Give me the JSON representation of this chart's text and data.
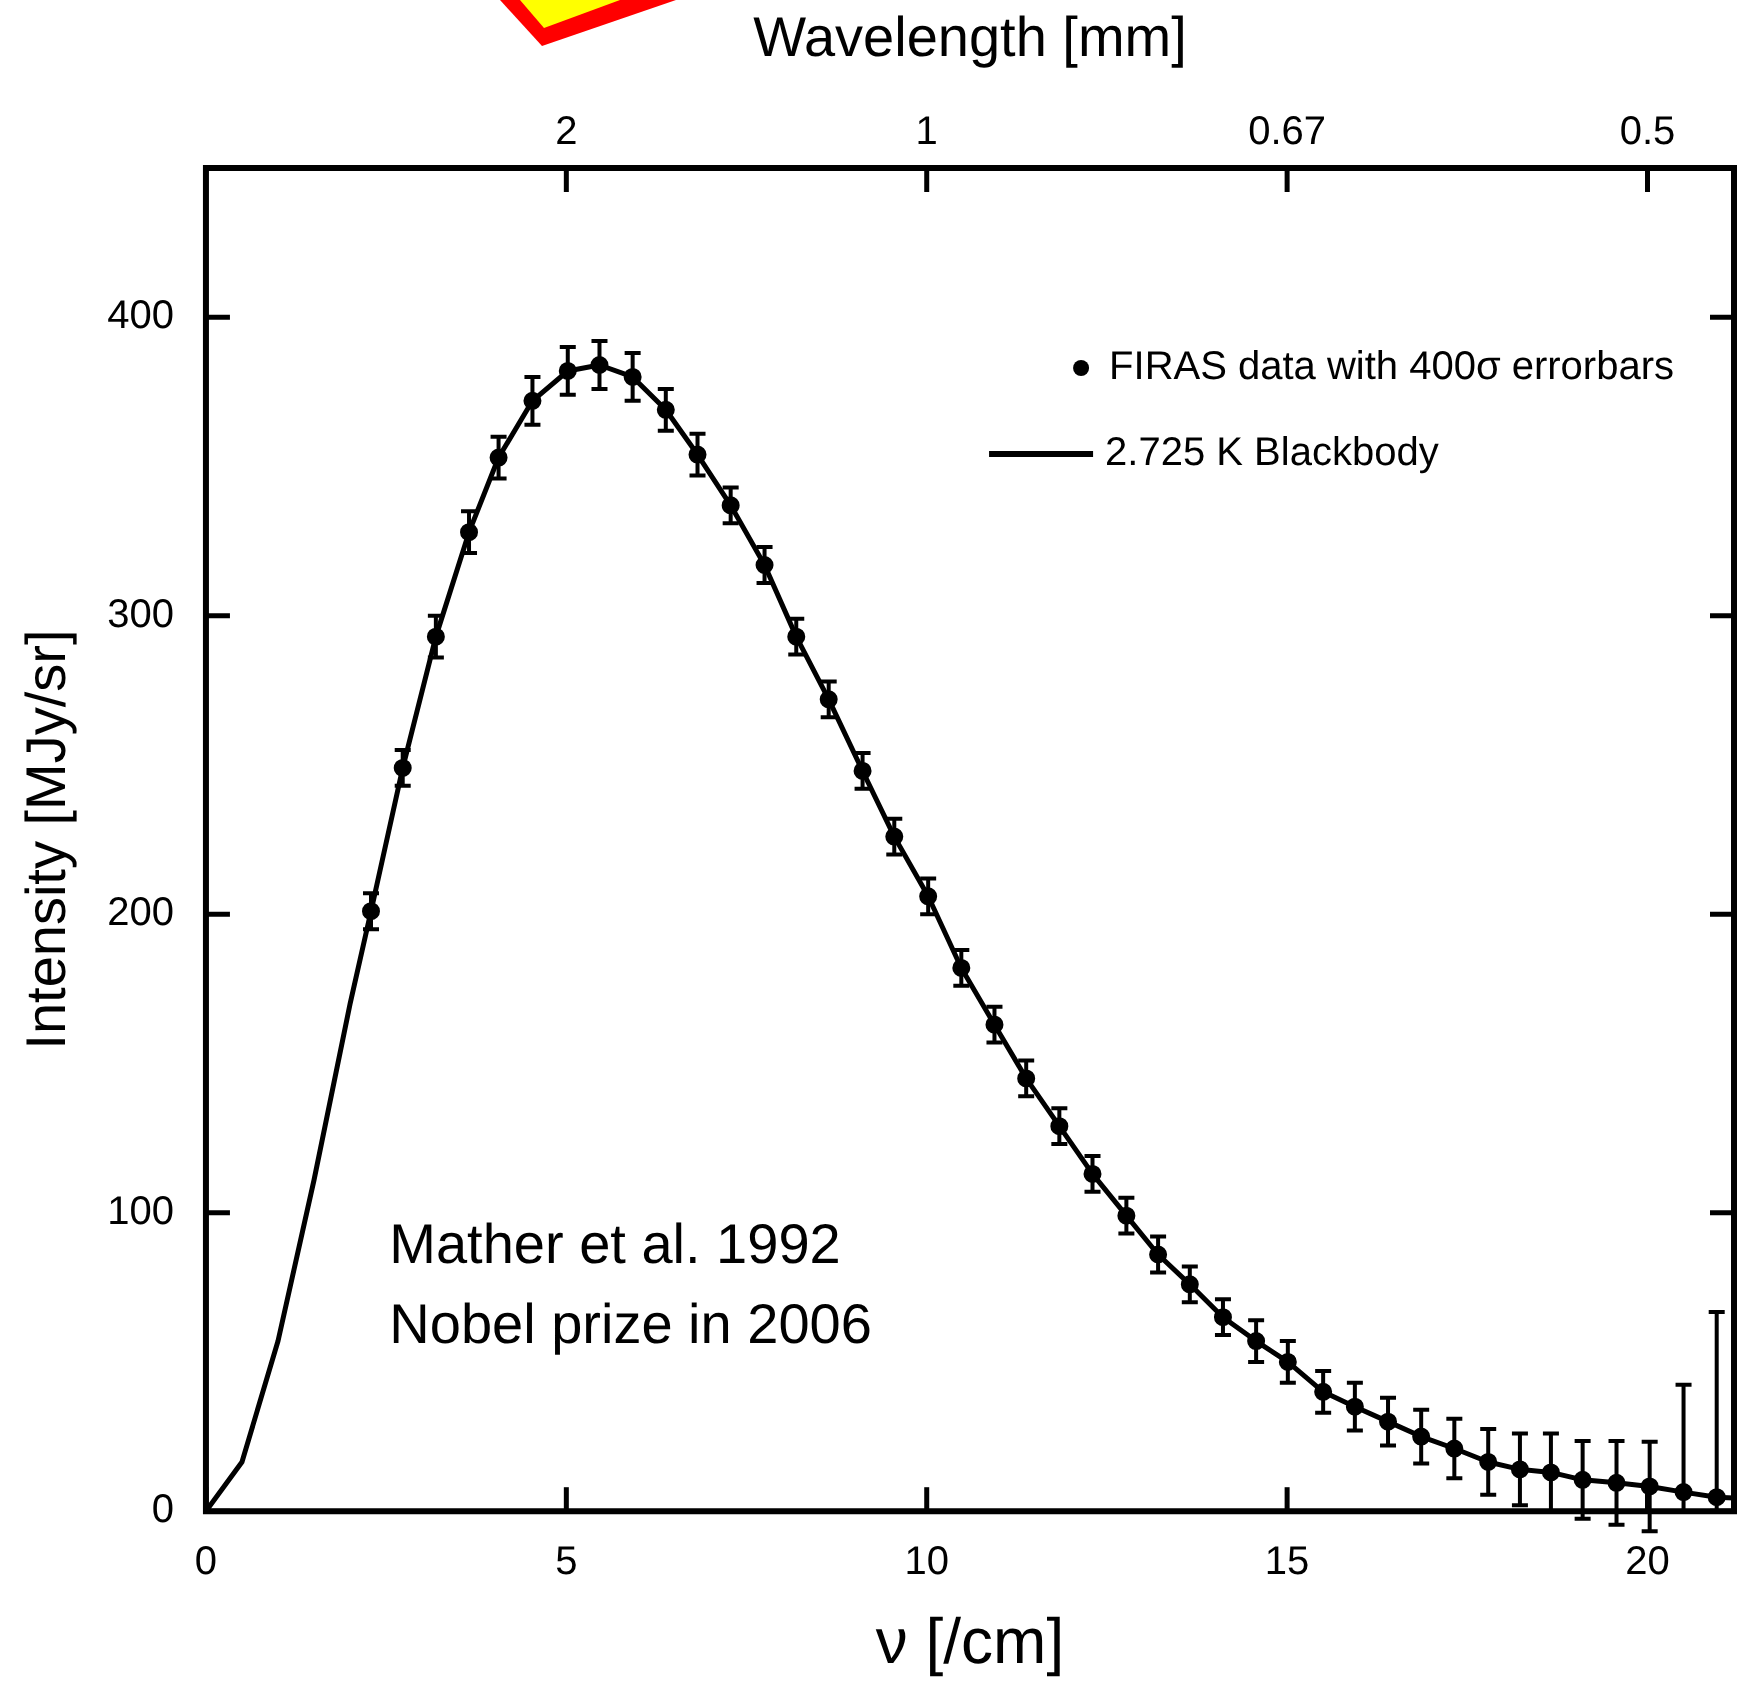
{
  "chart_data": {
    "type": "scatter",
    "xlabel": "ν [/cm]",
    "ylabel": "Intensity [MJy/sr]",
    "xlim": [
      0,
      21.2
    ],
    "xticks": [
      0,
      5,
      10,
      15,
      20
    ],
    "ylim": [
      0,
      450
    ],
    "yticks": [
      0,
      100,
      200,
      300,
      400
    ],
    "x": [
      2.29,
      2.73,
      3.19,
      3.65,
      4.06,
      4.53,
      5.02,
      5.46,
      5.92,
      6.38,
      6.82,
      7.28,
      7.75,
      8.19,
      8.64,
      9.11,
      9.55,
      10.02,
      10.48,
      10.94,
      11.38,
      11.84,
      12.3,
      12.77,
      13.21,
      13.65,
      14.11,
      14.57,
      15.01,
      15.5,
      15.94,
      16.4,
      16.86,
      17.32,
      17.79,
      18.23,
      18.66,
      19.1,
      19.57,
      20.03,
      20.5,
      20.96
    ],
    "series": [
      {
        "name": "FIRAS data with 400σ errorbars",
        "marker": "circle",
        "color": "#000000",
        "values": [
          201,
          249,
          293,
          328,
          353,
          372,
          382,
          384,
          380,
          369,
          354,
          337,
          317,
          293,
          272,
          248,
          226,
          206,
          182,
          163,
          145,
          129,
          113,
          99,
          86,
          76,
          65,
          57,
          50,
          40,
          35,
          30,
          25,
          21,
          16.5,
          14,
          13,
          10.5,
          9.5,
          8.3,
          6.4,
          4.7
        ],
        "errors": [
          6,
          6,
          7,
          7,
          7,
          8,
          8,
          8,
          8,
          7,
          7,
          6,
          6,
          6,
          6,
          6,
          6,
          6,
          6,
          6,
          6,
          6,
          6,
          6,
          6,
          6,
          6,
          7,
          7,
          7,
          8,
          8,
          9,
          10,
          11,
          12,
          13,
          13,
          14,
          15,
          [
            0,
            42.4
          ],
          [
            0,
            66.7
          ]
        ]
      },
      {
        "name": "2.725 K Blackbody",
        "type": "line",
        "color": "#000000",
        "x": [
          0,
          0.5,
          1,
          1.5,
          2,
          2.29,
          2.73,
          3.19,
          3.65,
          4.06,
          4.53,
          5.02,
          5.46,
          5.92,
          6.38,
          6.82,
          7.28,
          7.75,
          8.19,
          8.64,
          9.11,
          9.55,
          10.02,
          10.48,
          10.94,
          11.38,
          11.84,
          12.3,
          12.77,
          13.21,
          13.65,
          14.11,
          14.57,
          15.01,
          15.5,
          15.94,
          16.4,
          16.86,
          17.32,
          17.79,
          18.23,
          18.66,
          19.1,
          19.57,
          20.03,
          20.5,
          20.96,
          21.2
        ],
        "values": [
          0,
          16.5,
          57,
          111,
          170,
          201,
          249,
          293,
          328,
          353,
          372,
          382,
          384,
          380,
          369,
          354,
          337,
          317,
          293,
          272,
          248,
          226,
          206,
          182,
          163,
          145,
          129,
          113,
          99,
          86,
          76,
          65,
          57,
          50,
          40,
          35,
          30,
          25,
          21,
          16.5,
          14,
          13,
          10.5,
          9.5,
          8.3,
          6.4,
          4.7,
          4.4
        ]
      }
    ],
    "legend": "top right",
    "line_style": "solid",
    "annotations": [
      "Mather et al. 1992",
      "Nobel prize in 2006",
      "Wavelength [mm]",
      {
        "text": "2",
        "x": 5
      },
      {
        "text": "1",
        "x": 10
      },
      {
        "text": "0.67",
        "x": 15
      },
      {
        "text": "0.5",
        "x": 20
      }
    ]
  }
}
